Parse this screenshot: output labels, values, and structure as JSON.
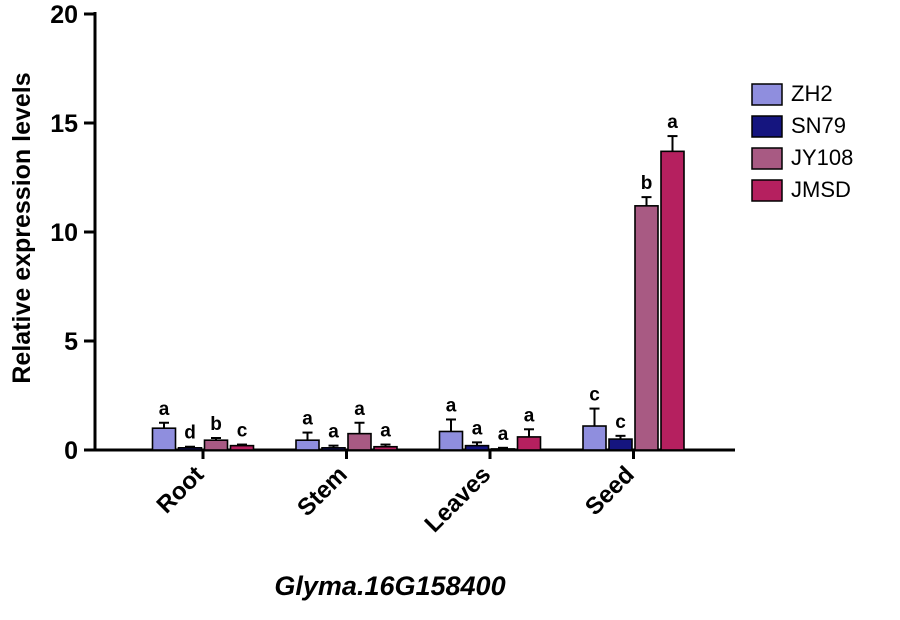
{
  "chart_data": {
    "type": "bar",
    "title": "Glyma.16G158400",
    "ylabel": "Relative expression levels",
    "xlabel": "",
    "ylim": [
      0,
      20
    ],
    "yticks": [
      0,
      5,
      10,
      15,
      20
    ],
    "grid": false,
    "legend_position": "right",
    "bar_border_color": "#000000",
    "axis_color": "#000000",
    "categories": [
      "Root",
      "Stem",
      "Leaves",
      "Seed"
    ],
    "series": [
      {
        "name": "ZH2",
        "color": "#8f8ede",
        "values": [
          1.0,
          0.45,
          0.85,
          1.1
        ],
        "errors": [
          0.25,
          0.35,
          0.55,
          0.8
        ],
        "letters": [
          "a",
          "a",
          "a",
          "c"
        ]
      },
      {
        "name": "SN79",
        "color": "#15157f",
        "values": [
          0.1,
          0.1,
          0.2,
          0.5
        ],
        "errors": [
          0.05,
          0.1,
          0.15,
          0.15
        ],
        "letters": [
          "d",
          "a",
          "a",
          "c"
        ]
      },
      {
        "name": "JY108",
        "color": "#a85a83",
        "values": [
          0.45,
          0.75,
          0.05,
          11.2
        ],
        "errors": [
          0.1,
          0.5,
          0.05,
          0.4
        ],
        "letters": [
          "b",
          "a",
          "a",
          "b"
        ]
      },
      {
        "name": "JMSD",
        "color": "#b5205f",
        "values": [
          0.2,
          0.15,
          0.6,
          13.7
        ],
        "errors": [
          0.05,
          0.1,
          0.35,
          0.7
        ],
        "letters": [
          "c",
          "a",
          "a",
          "a"
        ]
      }
    ]
  }
}
